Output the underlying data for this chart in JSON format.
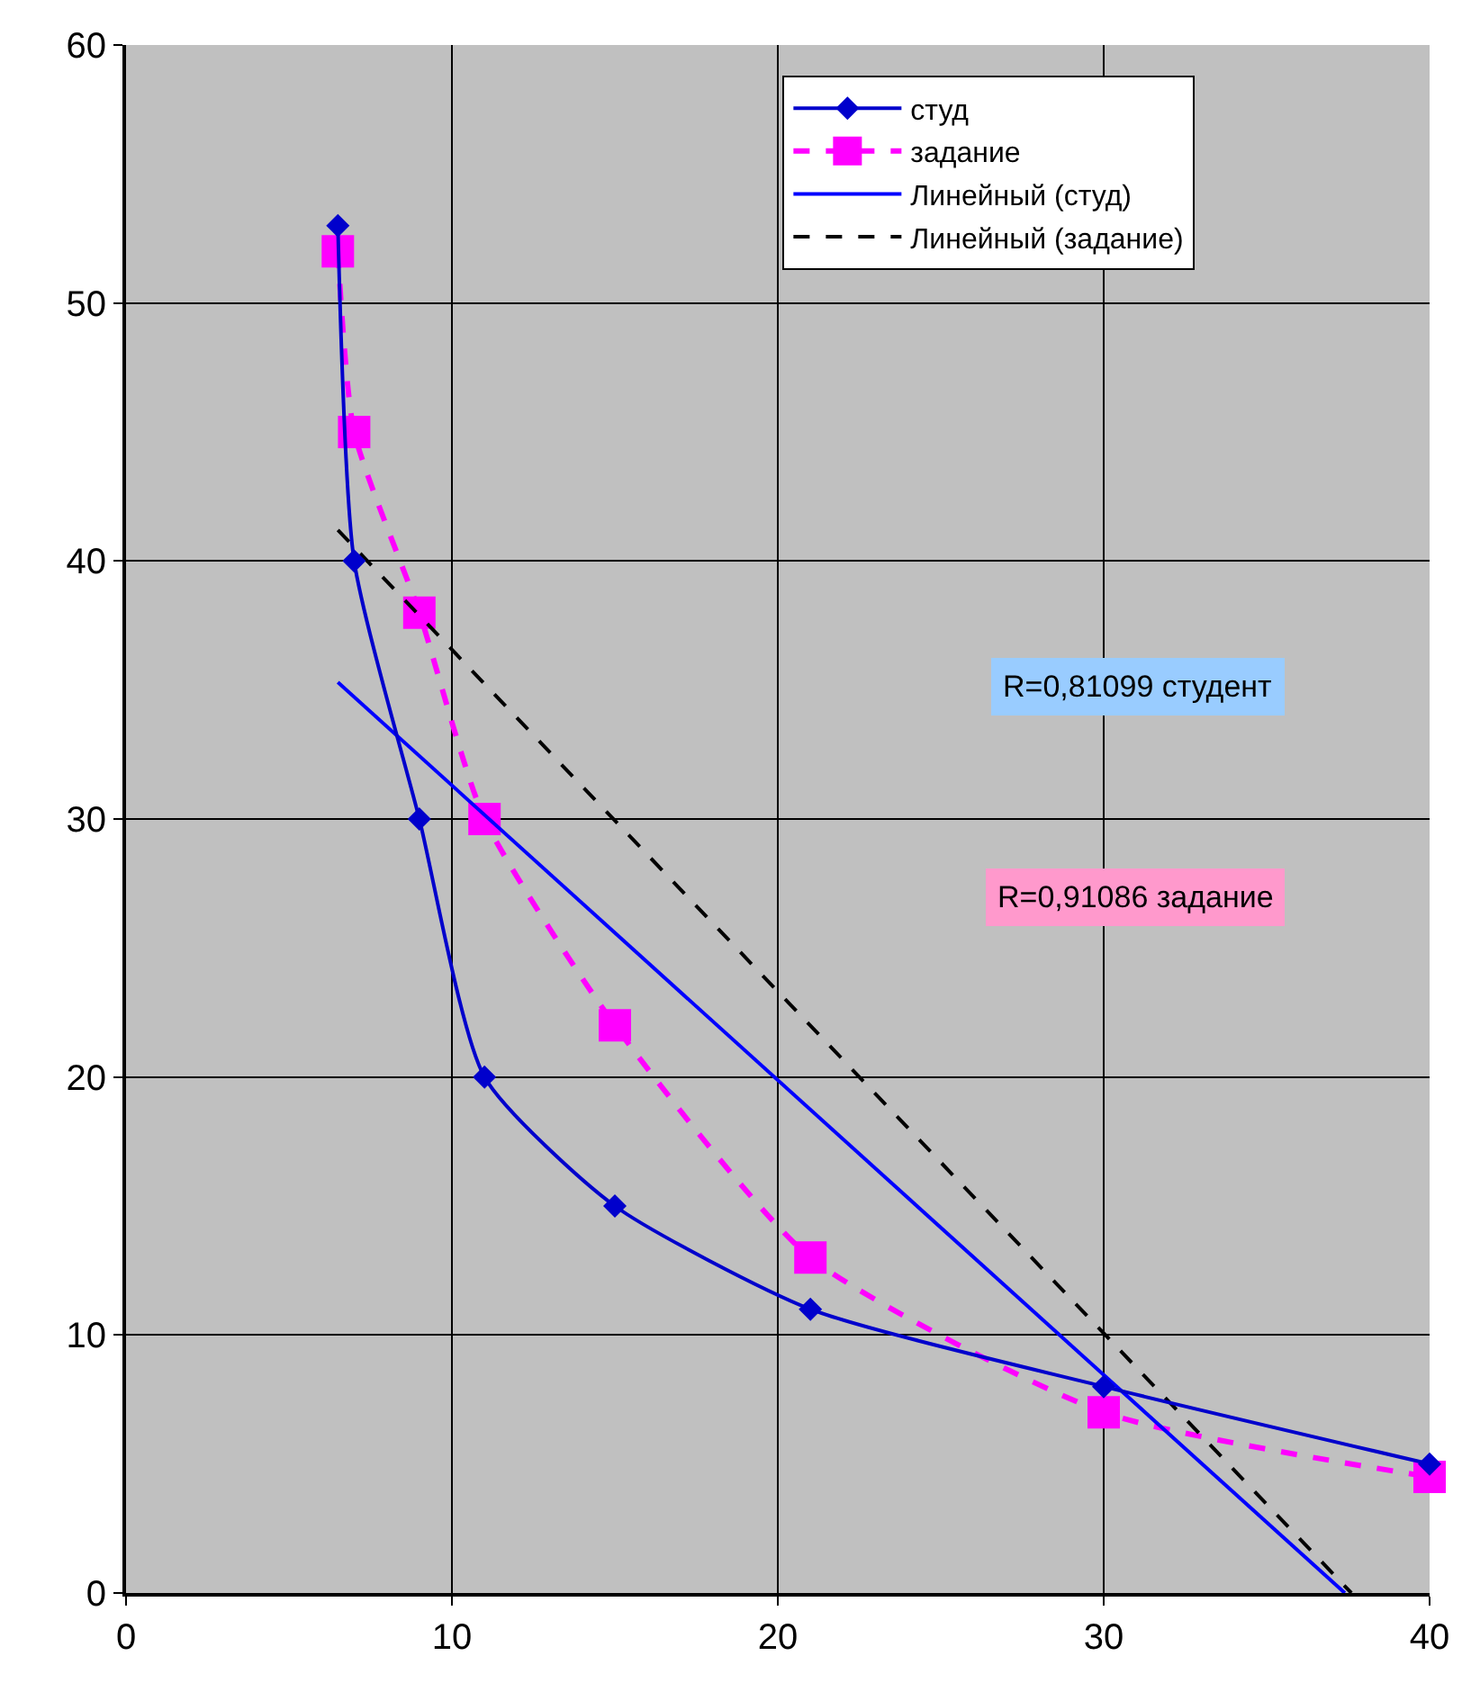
{
  "chart_data": {
    "type": "line",
    "x": [
      6.5,
      7,
      9,
      11,
      15,
      21,
      30,
      40
    ],
    "series": [
      {
        "name": "студ",
        "color": "#0000cc",
        "marker": "diamond",
        "line_style": "solid",
        "values": [
          53,
          40,
          30,
          20,
          15,
          11,
          8,
          5
        ]
      },
      {
        "name": "задание",
        "color": "#ff00ff",
        "marker": "square",
        "line_style": "dashed",
        "values": [
          52,
          45,
          38,
          30,
          22,
          13,
          7,
          4.5
        ]
      },
      {
        "name": "Линейный (студ)",
        "color": "#0000ff",
        "marker": "none",
        "line_style": "solid",
        "x": [
          6.5,
          37.4
        ],
        "values": [
          35.3,
          0
        ]
      },
      {
        "name": "Линейный (задание)",
        "color": "#000000",
        "marker": "none",
        "line_style": "dashed",
        "x": [
          6.5,
          37.6
        ],
        "values": [
          41.2,
          0
        ]
      }
    ],
    "xlim": [
      0,
      40
    ],
    "xticks": [
      0,
      10,
      20,
      30,
      40
    ],
    "ylim": [
      0,
      60
    ],
    "yticks": [
      0,
      10,
      20,
      30,
      40,
      50,
      60
    ],
    "grid": true,
    "legend": "top right",
    "annotations": [
      "R=0,81099 студент",
      "R=0,91086 задание"
    ]
  }
}
